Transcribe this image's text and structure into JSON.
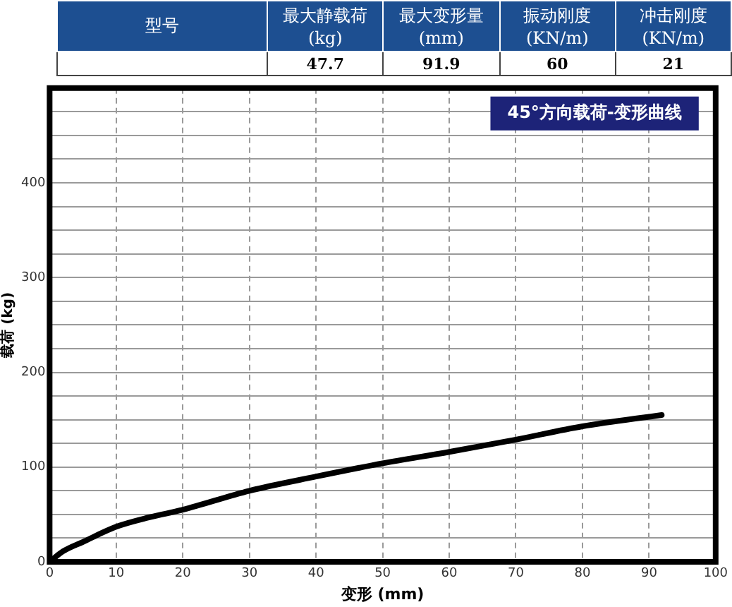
{
  "chart_data": {
    "type": "line",
    "title": "45°方向载荷-变形曲线",
    "xlabel": "变形 (mm)",
    "ylabel": "载荷 (kg)",
    "annotations": [
      "型号",
      "最大静载荷(kg)",
      "最大变形量(mm)",
      "振动刚度(KN/m)",
      "冲击刚度(KN/m)",
      "47.7",
      "91.9",
      "60",
      "21"
    ],
    "x": [
      0,
      2,
      5,
      10,
      15,
      20,
      30,
      40,
      50,
      60,
      70,
      80,
      91.9
    ],
    "series": [
      {
        "color": "#000000",
        "values": [
          0,
          11,
          21,
          37,
          47,
          55,
          75,
          90,
          104,
          116,
          129,
          143,
          155
        ]
      }
    ],
    "xlim": [
      0,
      100
    ],
    "xticks": [
      0,
      10,
      20,
      30,
      40,
      50,
      60,
      70,
      80,
      90,
      100
    ],
    "ylim": [
      0,
      500
    ],
    "yticks": [
      0,
      {
        "value": 25,
        "label": null
      },
      {
        "value": 50,
        "label": null
      },
      {
        "value": 75,
        "label": null
      },
      100,
      {
        "value": 125,
        "label": null
      },
      {
        "value": 150,
        "label": null
      },
      {
        "value": 175,
        "label": null
      },
      200,
      {
        "value": 225,
        "label": null
      },
      {
        "value": 250,
        "label": null
      },
      {
        "value": 275,
        "label": null
      },
      300,
      {
        "value": 325,
        "label": null
      },
      {
        "value": 350,
        "label": null
      },
      {
        "value": 375,
        "label": null
      },
      400,
      {
        "value": 425,
        "label": null
      },
      {
        "value": 450,
        "label": null
      },
      {
        "value": 475,
        "label": null
      },
      {
        "value": 500,
        "label": null
      }
    ],
    "grid": true,
    "legend": false,
    "marker": "none",
    "line_style": "solid"
  }
}
